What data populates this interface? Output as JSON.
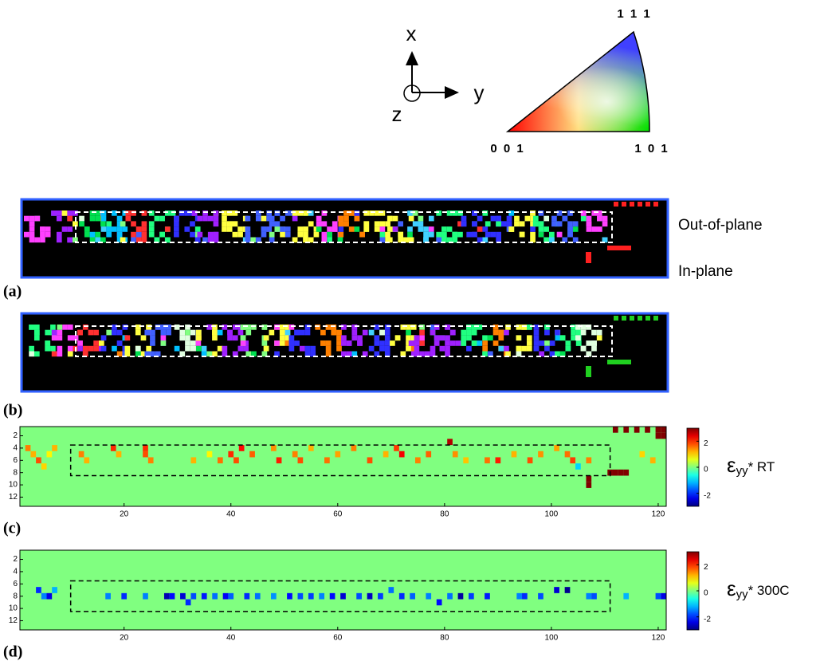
{
  "axes_icon": {
    "x": "x",
    "y": "y",
    "z": "z"
  },
  "ipf_key": {
    "top": "1 1 1",
    "left": "0 0 1",
    "right": "1 0 1"
  },
  "maps": [
    {
      "panel_label": "(a)",
      "row_labels": [
        "Out-of-plane",
        "In-plane"
      ]
    },
    {
      "panel_label": "(b)"
    }
  ],
  "chart_data": [
    {
      "type": "heatmap",
      "panel_label": "(c)",
      "colorbar_label": {
        "symbol": "ε",
        "subscript": "yy",
        "suffix": "* RT"
      },
      "xlim": [
        0.5,
        121.5
      ],
      "ylim": [
        0.5,
        13.5
      ],
      "xticks": [
        20,
        40,
        60,
        80,
        100,
        120
      ],
      "yticks": [
        2,
        4,
        6,
        8,
        10,
        12
      ],
      "clim": [
        -3,
        3
      ],
      "cticks": [
        2,
        0,
        -2
      ],
      "background_value": 0,
      "cells": [
        [
          2,
          4,
          1.5
        ],
        [
          3,
          5,
          1.2
        ],
        [
          4,
          6,
          1.8
        ],
        [
          5,
          7,
          1
        ],
        [
          6,
          5,
          0.8
        ],
        [
          7,
          4,
          1.2
        ],
        [
          12,
          5,
          1.5
        ],
        [
          13,
          6,
          1.2
        ],
        [
          18,
          4,
          2
        ],
        [
          19,
          5,
          1.2
        ],
        [
          24,
          4,
          2
        ],
        [
          24,
          5,
          1.8
        ],
        [
          25,
          6,
          1.5
        ],
        [
          33,
          6,
          1.2
        ],
        [
          36,
          5,
          0.8
        ],
        [
          38,
          6,
          1.6
        ],
        [
          40,
          5,
          2
        ],
        [
          41,
          6,
          1.8
        ],
        [
          42,
          4,
          2.2
        ],
        [
          44,
          5,
          1.7
        ],
        [
          48,
          4,
          1.4
        ],
        [
          49,
          6,
          2.1
        ],
        [
          52,
          5,
          1.5
        ],
        [
          53,
          6,
          1.8
        ],
        [
          55,
          4,
          1.2
        ],
        [
          58,
          6,
          1.6
        ],
        [
          60,
          5,
          1.3
        ],
        [
          63,
          4,
          1.5
        ],
        [
          66,
          6,
          1.8
        ],
        [
          69,
          5,
          1.2
        ],
        [
          71,
          4,
          1.9
        ],
        [
          72,
          5,
          2.3
        ],
        [
          75,
          6,
          1.5
        ],
        [
          77,
          5,
          1.7
        ],
        [
          81,
          3,
          2.7
        ],
        [
          82,
          5,
          1.4
        ],
        [
          84,
          6,
          1.1
        ],
        [
          88,
          6,
          1.6
        ],
        [
          90,
          6,
          2.1
        ],
        [
          93,
          5,
          1.2
        ],
        [
          96,
          6,
          1.8
        ],
        [
          98,
          5,
          1.4
        ],
        [
          101,
          4,
          1.3
        ],
        [
          103,
          5,
          1.6
        ],
        [
          104,
          6,
          1.9
        ],
        [
          105,
          7,
          -1
        ],
        [
          107,
          6,
          1.5
        ],
        [
          107,
          9,
          3
        ],
        [
          107,
          10,
          3
        ],
        [
          111,
          8,
          3
        ],
        [
          112,
          8,
          3
        ],
        [
          113,
          8,
          3
        ],
        [
          114,
          8,
          3
        ],
        [
          112,
          1,
          3
        ],
        [
          114,
          1,
          3
        ],
        [
          116,
          1,
          3
        ],
        [
          118,
          1,
          3
        ],
        [
          120,
          1,
          3
        ],
        [
          121,
          1,
          3
        ],
        [
          120,
          2,
          3
        ],
        [
          121,
          2,
          3
        ],
        [
          117,
          5,
          1
        ],
        [
          119,
          6,
          1.2
        ]
      ]
    },
    {
      "type": "heatmap",
      "panel_label": "(d)",
      "colorbar_label": {
        "symbol": "ε",
        "subscript": "yy",
        "suffix": "* 300C"
      },
      "xlim": [
        0.5,
        121.5
      ],
      "ylim": [
        0.5,
        13.5
      ],
      "xticks": [
        20,
        40,
        60,
        80,
        100,
        120
      ],
      "yticks": [
        2,
        4,
        6,
        8,
        10,
        12
      ],
      "clim": [
        -3,
        3
      ],
      "cticks": [
        2,
        0,
        -2
      ],
      "background_value": 0,
      "cells": [
        [
          4,
          7,
          -2
        ],
        [
          5,
          8,
          -1.5
        ],
        [
          6,
          8,
          -2.4
        ],
        [
          7,
          7,
          -1.2
        ],
        [
          17,
          8,
          -1.5
        ],
        [
          20,
          8,
          -2
        ],
        [
          24,
          8,
          -1.5
        ],
        [
          28,
          8,
          -2.7
        ],
        [
          29,
          8,
          -2.2
        ],
        [
          31,
          8,
          -2.5
        ],
        [
          32,
          9,
          -2
        ],
        [
          33,
          8,
          -1.8
        ],
        [
          35,
          8,
          -2.1
        ],
        [
          37,
          8,
          -1.6
        ],
        [
          39,
          8,
          -2.3
        ],
        [
          40,
          8,
          -1.7
        ],
        [
          43,
          8,
          -2
        ],
        [
          45,
          8,
          -1.6
        ],
        [
          48,
          8,
          -1.4
        ],
        [
          51,
          8,
          -2.2
        ],
        [
          53,
          8,
          -1.8
        ],
        [
          55,
          8,
          -1.9
        ],
        [
          57,
          8,
          -1.5
        ],
        [
          59,
          8,
          -2.2
        ],
        [
          61,
          8,
          -2.5
        ],
        [
          64,
          8,
          -1.8
        ],
        [
          66,
          8,
          -2.6
        ],
        [
          68,
          8,
          -1.9
        ],
        [
          70,
          7,
          -1.6
        ],
        [
          72,
          8,
          -2
        ],
        [
          74,
          8,
          -1.7
        ],
        [
          77,
          8,
          -1.5
        ],
        [
          79,
          9,
          -2.2
        ],
        [
          81,
          8,
          -1.6
        ],
        [
          83,
          8,
          -2.8
        ],
        [
          85,
          8,
          -1.9
        ],
        [
          88,
          8,
          -2.1
        ],
        [
          94,
          8,
          -1.5
        ],
        [
          95,
          8,
          -2
        ],
        [
          98,
          8,
          -1.8
        ],
        [
          101,
          7,
          -2.5
        ],
        [
          103,
          7,
          -2.9
        ],
        [
          107,
          8,
          -1.5
        ],
        [
          108,
          8,
          -1.8
        ],
        [
          114,
          8,
          -1.2
        ],
        [
          120,
          8,
          -1.8
        ],
        [
          121,
          8,
          -2.4
        ]
      ]
    }
  ]
}
